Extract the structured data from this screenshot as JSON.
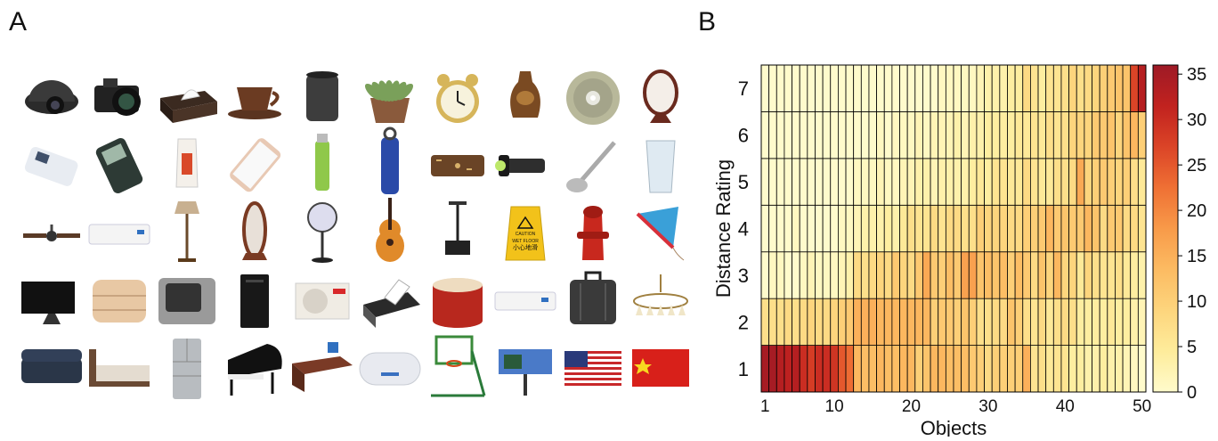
{
  "panel_a_label": "A",
  "panel_b_label": "B",
  "objects_grid": {
    "rows": [
      [
        "camera-dome-icon",
        "camera-icon",
        "tissue-box-icon",
        "coffee-cup-icon",
        "mug-icon",
        "potted-plant-icon",
        "alarm-clock-icon",
        "vase-icon",
        "cd-icon",
        "mirror-icon"
      ],
      [
        "remote-control-icon",
        "cell-phone-icon",
        "toothpaste-icon",
        "smartphone-icon",
        "bottle-icon",
        "thermos-icon",
        "wallet-icon",
        "flashlight-icon",
        "ladle-icon",
        "glass-icon"
      ],
      [
        "ceiling-fan-icon",
        "air-conditioner-icon",
        "floor-lamp-icon",
        "standing-mirror-icon",
        "electric-fan-icon",
        "guitar-icon",
        "projector-icon",
        "wet-floor-sign-icon",
        "fire-hydrant-icon",
        "kite-icon"
      ],
      [
        "monitor-icon",
        "blanket-icon",
        "crt-tv-icon",
        "pc-tower-icon",
        "ac-outdoor-unit-icon",
        "printer-icon",
        "drum-icon",
        "split-ac-icon",
        "suitcase-icon",
        "chandelier-icon"
      ],
      [
        "sofa-icon",
        "bed-icon",
        "refrigerator-icon",
        "grand-piano-icon",
        "desk-icon",
        "water-heater-icon",
        "basketball-hoop-icon",
        "billboard-icon",
        "us-flag-icon",
        "china-flag-icon"
      ]
    ],
    "wet_floor_sign_text": [
      "CAUTION",
      "WET FLOOR",
      "小心地滑"
    ]
  },
  "colors": {
    "scale": [
      "#FFFBCC",
      "#FEEC9B",
      "#FDD57D",
      "#FCBB62",
      "#F89A49",
      "#EF7034",
      "#DB4427",
      "#C1221F",
      "#9E1A26"
    ],
    "grid": "#000000"
  },
  "chart_data": {
    "type": "heatmap",
    "xlabel": "Objects",
    "ylabel": "Distance Rating",
    "x_ticks": [
      1,
      10,
      20,
      30,
      40,
      50
    ],
    "y_categories": [
      1,
      2,
      3,
      4,
      5,
      6,
      7
    ],
    "n_objects": 50,
    "colorbar": {
      "min": 0,
      "max": 36,
      "ticks": [
        0,
        5,
        10,
        15,
        20,
        25,
        30,
        35
      ]
    },
    "values": [
      [
        35,
        35,
        33,
        32,
        33,
        30,
        28,
        30,
        30,
        29,
        25,
        23,
        14,
        13,
        13,
        14,
        13,
        13,
        14,
        14,
        10,
        12,
        14,
        14,
        13,
        13,
        13,
        11,
        10,
        8,
        10,
        10,
        10,
        10,
        15,
        6,
        7,
        5,
        6,
        6,
        4,
        4,
        3,
        3,
        4,
        3,
        3,
        2,
        1,
        0
      ],
      [
        7,
        7,
        7,
        8,
        7,
        8,
        9,
        8,
        8,
        9,
        10,
        11,
        15,
        15,
        15,
        14,
        14,
        14,
        14,
        14,
        14,
        14,
        10,
        11,
        11,
        10,
        12,
        10,
        7,
        7,
        8,
        8,
        12,
        10,
        7,
        6,
        8,
        5,
        7,
        8,
        7,
        4,
        4,
        4,
        4,
        5,
        4,
        4,
        3,
        2
      ],
      [
        0,
        1,
        1,
        0,
        0,
        1,
        2,
        1,
        1,
        1,
        2,
        3,
        8,
        7,
        8,
        9,
        8,
        11,
        9,
        8,
        11,
        16,
        11,
        10,
        13,
        11,
        17,
        17,
        12,
        13,
        12,
        13,
        10,
        13,
        11,
        8,
        12,
        9,
        14,
        9,
        9,
        5,
        9,
        7,
        6,
        6,
        7,
        5,
        4,
        3
      ],
      [
        0,
        0,
        0,
        0,
        1,
        0,
        0,
        0,
        0,
        0,
        1,
        1,
        2,
        3,
        3,
        3,
        4,
        3,
        5,
        7,
        6,
        6,
        8,
        6,
        8,
        8,
        7,
        7,
        10,
        9,
        9,
        9,
        8,
        8,
        10,
        10,
        11,
        14,
        11,
        12,
        11,
        11,
        14,
        12,
        8,
        11,
        11,
        8,
        8,
        6
      ],
      [
        0,
        0,
        0,
        0,
        0,
        0,
        0,
        0,
        0,
        0,
        0,
        0,
        1,
        1,
        1,
        2,
        1,
        1,
        2,
        2,
        3,
        3,
        2,
        3,
        3,
        3,
        3,
        4,
        5,
        4,
        6,
        6,
        5,
        5,
        8,
        6,
        5,
        5,
        7,
        7,
        8,
        16,
        9,
        10,
        11,
        10,
        9,
        10,
        7,
        5
      ],
      [
        0,
        0,
        0,
        0,
        0,
        0,
        0,
        0,
        0,
        0,
        0,
        0,
        0,
        0,
        0,
        1,
        0,
        1,
        1,
        1,
        2,
        1,
        2,
        2,
        2,
        3,
        2,
        3,
        3,
        4,
        4,
        4,
        4,
        5,
        5,
        6,
        5,
        7,
        6,
        7,
        9,
        9,
        9,
        11,
        11,
        12,
        9,
        12,
        14,
        10
      ],
      [
        0,
        0,
        0,
        0,
        0,
        0,
        0,
        0,
        0,
        0,
        0,
        0,
        0,
        0,
        0,
        0,
        0,
        0,
        0,
        0,
        0,
        0,
        0,
        1,
        1,
        1,
        1,
        1,
        2,
        3,
        3,
        3,
        4,
        4,
        8,
        6,
        4,
        6,
        6,
        7,
        9,
        7,
        8,
        9,
        10,
        11,
        12,
        12,
        27,
        33
      ]
    ]
  }
}
